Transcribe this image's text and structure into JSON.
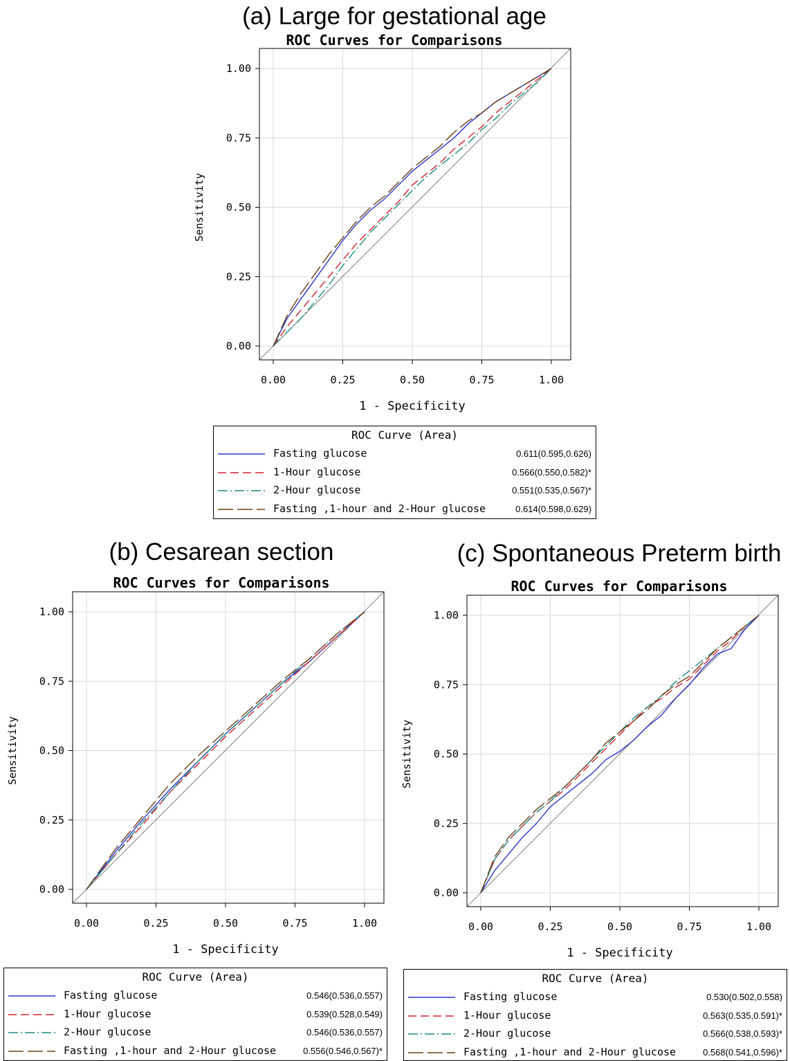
{
  "figure": {
    "panels": [
      {
        "id": "a",
        "heading": "(a) Large for gestational age"
      },
      {
        "id": "b",
        "heading": "(b) Cesarean section"
      },
      {
        "id": "c",
        "heading": "(c) Spontaneous Preterm birth"
      }
    ]
  },
  "colors": {
    "fasting": "#2a35c9",
    "one_hour": "#d0202a",
    "two_hour": "#1a8a80",
    "combined": "#6b3e14",
    "diagonal": "#808080",
    "grid": "#d8d8d8"
  },
  "chart_data": [
    {
      "type": "line",
      "title": "ROC Curves for Comparisons",
      "xlabel": "1 - Specificity",
      "ylabel": "Sensitivity",
      "xlim": [
        0,
        1
      ],
      "ylim": [
        0,
        1
      ],
      "xticks": [
        "0.00",
        "0.25",
        "0.50",
        "0.75",
        "1.00"
      ],
      "yticks": [
        "0.00",
        "0.25",
        "0.50",
        "0.75",
        "1.00"
      ],
      "grid": true,
      "legend_title": "ROC Curve (Area)",
      "legend_position": "bottom",
      "series": [
        {
          "name": "Fasting glucose",
          "area": "0.611(0.595,0.626)",
          "style": "solid",
          "color_key": "fasting",
          "x": [
            0,
            0.05,
            0.1,
            0.15,
            0.2,
            0.25,
            0.3,
            0.35,
            0.4,
            0.45,
            0.5,
            0.55,
            0.6,
            0.65,
            0.7,
            0.75,
            0.8,
            0.85,
            0.9,
            0.95,
            1
          ],
          "y": [
            0,
            0.1,
            0.17,
            0.24,
            0.31,
            0.38,
            0.44,
            0.49,
            0.53,
            0.58,
            0.63,
            0.67,
            0.71,
            0.75,
            0.8,
            0.84,
            0.88,
            0.91,
            0.94,
            0.97,
            1
          ]
        },
        {
          "name": "1-Hour glucose",
          "area": "0.566(0.550,0.582)*",
          "style": "dashed",
          "color_key": "one_hour",
          "x": [
            0,
            0.05,
            0.1,
            0.15,
            0.2,
            0.25,
            0.3,
            0.35,
            0.4,
            0.45,
            0.5,
            0.55,
            0.6,
            0.65,
            0.7,
            0.75,
            0.8,
            0.85,
            0.9,
            0.95,
            1
          ],
          "y": [
            0,
            0.07,
            0.13,
            0.19,
            0.25,
            0.31,
            0.37,
            0.42,
            0.47,
            0.52,
            0.58,
            0.62,
            0.66,
            0.71,
            0.75,
            0.79,
            0.84,
            0.88,
            0.92,
            0.96,
            1
          ]
        },
        {
          "name": "2-Hour glucose",
          "area": "0.551(0.535,0.567)*",
          "style": "dashdot",
          "color_key": "two_hour",
          "x": [
            0,
            0.05,
            0.1,
            0.15,
            0.2,
            0.25,
            0.3,
            0.35,
            0.4,
            0.45,
            0.5,
            0.55,
            0.6,
            0.65,
            0.7,
            0.75,
            0.8,
            0.85,
            0.9,
            0.95,
            1
          ],
          "y": [
            0,
            0.05,
            0.1,
            0.16,
            0.22,
            0.29,
            0.35,
            0.41,
            0.46,
            0.51,
            0.56,
            0.61,
            0.65,
            0.69,
            0.73,
            0.78,
            0.82,
            0.87,
            0.91,
            0.95,
            1
          ]
        },
        {
          "name": "Fasting ,1-hour and 2-Hour glucose",
          "area": "0.614(0.598,0.629)",
          "style": "longdash",
          "color_key": "combined",
          "x": [
            0,
            0.05,
            0.1,
            0.15,
            0.2,
            0.25,
            0.3,
            0.35,
            0.4,
            0.45,
            0.5,
            0.55,
            0.6,
            0.65,
            0.7,
            0.75,
            0.8,
            0.85,
            0.9,
            0.95,
            1
          ],
          "y": [
            0,
            0.11,
            0.19,
            0.26,
            0.33,
            0.39,
            0.45,
            0.5,
            0.54,
            0.59,
            0.64,
            0.68,
            0.72,
            0.77,
            0.81,
            0.84,
            0.88,
            0.91,
            0.94,
            0.97,
            1
          ]
        }
      ]
    },
    {
      "type": "line",
      "title": "ROC Curves for Comparisons",
      "xlabel": "1 - Specificity",
      "ylabel": "Sensitivity",
      "xlim": [
        0,
        1
      ],
      "ylim": [
        0,
        1
      ],
      "xticks": [
        "0.00",
        "0.25",
        "0.50",
        "0.75",
        "1.00"
      ],
      "yticks": [
        "0.00",
        "0.25",
        "0.50",
        "0.75",
        "1.00"
      ],
      "grid": true,
      "legend_title": "ROC Curve (Area)",
      "legend_position": "bottom",
      "series": [
        {
          "name": "Fasting glucose",
          "area": "0.546(0.536,0.557)",
          "style": "solid",
          "color_key": "fasting",
          "x": [
            0,
            0.1,
            0.2,
            0.3,
            0.4,
            0.5,
            0.6,
            0.7,
            0.8,
            0.9,
            1
          ],
          "y": [
            0,
            0.13,
            0.25,
            0.36,
            0.46,
            0.56,
            0.65,
            0.74,
            0.82,
            0.91,
            1
          ]
        },
        {
          "name": "1-Hour glucose",
          "area": "0.539(0.528,0.549)",
          "style": "dashed",
          "color_key": "one_hour",
          "x": [
            0,
            0.1,
            0.2,
            0.3,
            0.4,
            0.5,
            0.6,
            0.7,
            0.8,
            0.9,
            1
          ],
          "y": [
            0,
            0.12,
            0.23,
            0.35,
            0.45,
            0.55,
            0.64,
            0.73,
            0.82,
            0.91,
            1
          ]
        },
        {
          "name": "2-Hour glucose",
          "area": "0.546(0.536,0.557)",
          "style": "dashdot",
          "color_key": "two_hour",
          "x": [
            0,
            0.1,
            0.2,
            0.3,
            0.4,
            0.5,
            0.6,
            0.7,
            0.8,
            0.9,
            1
          ],
          "y": [
            0,
            0.12,
            0.24,
            0.35,
            0.46,
            0.56,
            0.65,
            0.74,
            0.83,
            0.92,
            1
          ]
        },
        {
          "name": "Fasting ,1-hour and 2-Hour glucose",
          "area": "0.556(0.546,0.567)*",
          "style": "longdash",
          "color_key": "combined",
          "x": [
            0,
            0.1,
            0.2,
            0.3,
            0.4,
            0.5,
            0.6,
            0.7,
            0.8,
            0.9,
            1
          ],
          "y": [
            0,
            0.14,
            0.26,
            0.38,
            0.48,
            0.57,
            0.66,
            0.75,
            0.83,
            0.92,
            1
          ]
        }
      ]
    },
    {
      "type": "line",
      "title": "ROC Curves for Comparisons",
      "xlabel": "1 - Specificity",
      "ylabel": "Sensitivity",
      "xlim": [
        0,
        1
      ],
      "ylim": [
        0,
        1
      ],
      "xticks": [
        "0.00",
        "0.25",
        "0.50",
        "0.75",
        "1.00"
      ],
      "yticks": [
        "0.00",
        "0.25",
        "0.50",
        "0.75",
        "1.00"
      ],
      "grid": true,
      "legend_title": "ROC Curve (Area)",
      "legend_position": "bottom",
      "series": [
        {
          "name": "Fasting glucose",
          "area": "0.530(0.502,0.558)",
          "style": "solid",
          "color_key": "fasting",
          "x": [
            0,
            0.05,
            0.1,
            0.15,
            0.2,
            0.25,
            0.3,
            0.35,
            0.4,
            0.45,
            0.5,
            0.55,
            0.6,
            0.65,
            0.7,
            0.75,
            0.8,
            0.85,
            0.9,
            0.95,
            1
          ],
          "y": [
            0,
            0.08,
            0.14,
            0.2,
            0.25,
            0.31,
            0.35,
            0.39,
            0.43,
            0.48,
            0.51,
            0.55,
            0.6,
            0.64,
            0.7,
            0.75,
            0.81,
            0.86,
            0.88,
            0.95,
            1
          ]
        },
        {
          "name": "1-Hour glucose",
          "area": "0.563(0.535,0.591)*",
          "style": "dashed",
          "color_key": "one_hour",
          "x": [
            0,
            0.05,
            0.1,
            0.15,
            0.2,
            0.25,
            0.3,
            0.35,
            0.4,
            0.45,
            0.5,
            0.55,
            0.6,
            0.65,
            0.7,
            0.75,
            0.8,
            0.85,
            0.9,
            0.95,
            1
          ],
          "y": [
            0,
            0.12,
            0.19,
            0.24,
            0.29,
            0.33,
            0.37,
            0.42,
            0.47,
            0.52,
            0.57,
            0.62,
            0.67,
            0.7,
            0.74,
            0.77,
            0.82,
            0.87,
            0.91,
            0.96,
            1
          ]
        },
        {
          "name": "2-Hour glucose",
          "area": "0.566(0.538,0.593)*",
          "style": "dashdot",
          "color_key": "two_hour",
          "x": [
            0,
            0.05,
            0.1,
            0.15,
            0.2,
            0.25,
            0.3,
            0.35,
            0.4,
            0.45,
            0.5,
            0.55,
            0.6,
            0.65,
            0.7,
            0.75,
            0.8,
            0.85,
            0.9,
            0.95,
            1
          ],
          "y": [
            0,
            0.12,
            0.19,
            0.24,
            0.29,
            0.33,
            0.38,
            0.43,
            0.48,
            0.53,
            0.58,
            0.63,
            0.67,
            0.71,
            0.76,
            0.8,
            0.84,
            0.88,
            0.92,
            0.96,
            1
          ]
        },
        {
          "name": "Fasting ,1-hour and 2-Hour glucose",
          "area": "0.568(0.541,0.596)*",
          "style": "longdash",
          "color_key": "combined",
          "x": [
            0,
            0.05,
            0.1,
            0.15,
            0.2,
            0.25,
            0.3,
            0.35,
            0.4,
            0.45,
            0.5,
            0.55,
            0.6,
            0.65,
            0.7,
            0.75,
            0.8,
            0.85,
            0.9,
            0.95,
            1
          ],
          "y": [
            0,
            0.13,
            0.2,
            0.25,
            0.3,
            0.34,
            0.38,
            0.43,
            0.48,
            0.54,
            0.58,
            0.62,
            0.66,
            0.71,
            0.75,
            0.78,
            0.83,
            0.88,
            0.92,
            0.96,
            1
          ]
        }
      ]
    }
  ]
}
